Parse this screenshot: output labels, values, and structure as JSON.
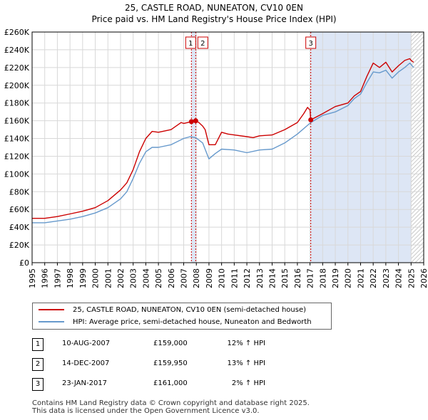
{
  "title_line1": "25, CASTLE ROAD, NUNEATON, CV10 0EN",
  "title_line2": "Price paid vs. HM Land Registry's House Price Index (HPI)",
  "colors": {
    "property": "#cc0000",
    "hpi": "#6699cc",
    "event_line": "#cc0000",
    "shade": "#dde6f5",
    "future_hatch": "#b8b8b8"
  },
  "chart_data": {
    "type": "line",
    "ylim": [
      0,
      260000
    ],
    "xlim": [
      1995,
      2026
    ],
    "ytick_values": [
      0,
      20000,
      40000,
      60000,
      80000,
      100000,
      120000,
      140000,
      160000,
      180000,
      200000,
      220000,
      240000,
      260000
    ],
    "ytick_labels": [
      "£0",
      "£20K",
      "£40K",
      "£60K",
      "£80K",
      "£100K",
      "£120K",
      "£140K",
      "£160K",
      "£180K",
      "£200K",
      "£220K",
      "£240K",
      "£260K"
    ],
    "xtick_labels": [
      "1995",
      "1996",
      "1997",
      "1998",
      "1999",
      "2000",
      "2001",
      "2002",
      "2003",
      "2004",
      "2005",
      "2006",
      "2007",
      "2008",
      "2009",
      "2010",
      "2011",
      "2012",
      "2013",
      "2014",
      "2015",
      "2016",
      "2017",
      "2018",
      "2019",
      "2020",
      "2021",
      "2022",
      "2023",
      "2024",
      "2025",
      "2026"
    ],
    "series": [
      {
        "name": "25, CASTLE ROAD, NUNEATON, CV10 0EN (semi-detached house)",
        "x": [
          1995.0,
          1996.0,
          1997.0,
          1998.0,
          1999.0,
          2000.0,
          2001.0,
          2002.0,
          2002.5,
          2003.0,
          2003.5,
          2004.0,
          2004.5,
          2005.0,
          2006.0,
          2006.8,
          2007.0,
          2007.61,
          2007.95,
          2008.2,
          2008.5,
          2008.7,
          2009.0,
          2009.5,
          2010.0,
          2010.5,
          2011.0,
          2012.0,
          2012.5,
          2013.0,
          2014.0,
          2015.0,
          2016.0,
          2016.5,
          2016.8,
          2017.0,
          2017.06,
          2018.0,
          2019.0,
          2020.0,
          2020.5,
          2021.0,
          2021.5,
          2022.0,
          2022.5,
          2023.0,
          2023.5,
          2024.0,
          2024.5,
          2024.9,
          2025.0,
          2025.2
        ],
        "values": [
          50000,
          50000,
          52000,
          55000,
          58000,
          62000,
          70000,
          82000,
          90000,
          105000,
          125000,
          140000,
          148000,
          147000,
          150000,
          158000,
          157000,
          159000,
          159950,
          158000,
          154000,
          150000,
          133000,
          133000,
          147000,
          145000,
          144000,
          142000,
          141000,
          143000,
          144000,
          150000,
          158000,
          168000,
          175000,
          172000,
          161000,
          168000,
          176000,
          180000,
          188000,
          193000,
          210000,
          225000,
          220000,
          226000,
          215000,
          222000,
          228000,
          230000,
          228000,
          226000
        ]
      },
      {
        "name": "HPI: Average price, semi-detached house, Nuneaton and Bedworth",
        "x": [
          1995.0,
          1996.0,
          1997.0,
          1998.0,
          1999.0,
          2000.0,
          2001.0,
          2002.0,
          2002.5,
          2003.0,
          2003.5,
          2004.0,
          2004.5,
          2005.0,
          2006.0,
          2007.0,
          2007.5,
          2007.95,
          2008.5,
          2009.0,
          2009.5,
          2010.0,
          2011.0,
          2012.0,
          2013.0,
          2014.0,
          2015.0,
          2016.0,
          2017.06,
          2018.0,
          2019.0,
          2020.0,
          2020.5,
          2021.0,
          2021.5,
          2022.0,
          2022.5,
          2023.0,
          2023.5,
          2024.0,
          2024.5,
          2024.9,
          2025.2
        ],
        "values": [
          45000,
          45000,
          47000,
          49000,
          52000,
          56000,
          62000,
          72000,
          80000,
          95000,
          112000,
          125000,
          130000,
          130000,
          133000,
          140000,
          142000,
          141000,
          135000,
          117000,
          123000,
          128000,
          127000,
          124000,
          127000,
          128000,
          135000,
          145000,
          158000,
          166000,
          170000,
          177000,
          185000,
          190000,
          203000,
          215000,
          214000,
          217000,
          208000,
          215000,
          220000,
          225000,
          220000
        ]
      }
    ],
    "events": [
      {
        "label": "1",
        "date": "10-AUG-2007",
        "x": 2007.61,
        "price": "£159,000",
        "value": 159000,
        "hpi": "12% ↑ HPI"
      },
      {
        "label": "2",
        "date": "14-DEC-2007",
        "x": 2007.95,
        "price": "£159,950",
        "value": 159950,
        "hpi": "13% ↑ HPI"
      },
      {
        "label": "3",
        "date": "23-JAN-2017",
        "x": 2017.06,
        "price": "£161,000",
        "value": 161000,
        "hpi": "2% ↑ HPI"
      }
    ],
    "shaded_ranges": [
      [
        2007.61,
        2007.95
      ]
    ],
    "future_from": 2025.0
  },
  "legend": {
    "property": "25, CASTLE ROAD, NUNEATON, CV10 0EN (semi-detached house)",
    "hpi": "HPI: Average price, semi-detached house, Nuneaton and Bedworth"
  },
  "footer": {
    "line1": "Contains HM Land Registry data © Crown copyright and database right 2025.",
    "line2": "This data is licensed under the Open Government Licence v3.0."
  }
}
